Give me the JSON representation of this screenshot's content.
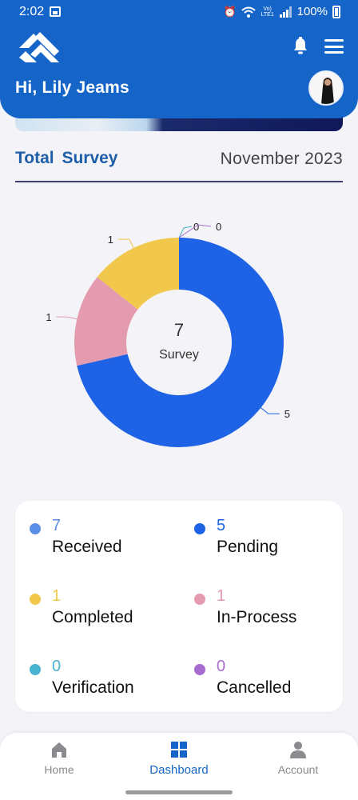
{
  "status_bar": {
    "time": "2:02",
    "battery": "100%",
    "network": "Vo) LTE1"
  },
  "header": {
    "greeting": "Hi, Lily Jeams"
  },
  "section": {
    "title": "Total  Survey",
    "month": "November 2023"
  },
  "chart_data": {
    "type": "pie",
    "donut": true,
    "center_value": "7",
    "center_label": "Survey",
    "slices": [
      {
        "label": "Pending",
        "value": 5,
        "color": "#1e63e6"
      },
      {
        "label": "In-Process",
        "value": 1,
        "color": "#e49bb0"
      },
      {
        "label": "Completed",
        "value": 1,
        "color": "#f1c84b"
      },
      {
        "label": "Verification",
        "value": 0,
        "color": "#4ab3cf"
      },
      {
        "label": "Cancelled",
        "value": 0,
        "color": "#a86cd1"
      }
    ],
    "data_labels": [
      "5",
      "1",
      "1",
      "0",
      "0"
    ]
  },
  "stats": [
    {
      "value": "7",
      "label": "Received",
      "color": "#5b8ee6"
    },
    {
      "value": "5",
      "label": "Pending",
      "color": "#1e63e6"
    },
    {
      "value": "1",
      "label": "Completed",
      "color": "#f1c84b"
    },
    {
      "value": "1",
      "label": "In-Process",
      "color": "#e49bb0"
    },
    {
      "value": "0",
      "label": "Verification",
      "color": "#4ab3cf"
    },
    {
      "value": "0",
      "label": "Cancelled",
      "color": "#a86cd1"
    }
  ],
  "nav": {
    "home": "Home",
    "dashboard": "Dashboard",
    "account": "Account"
  },
  "colors": {
    "primary": "#1565c8",
    "active_nav": "#1565c8"
  }
}
